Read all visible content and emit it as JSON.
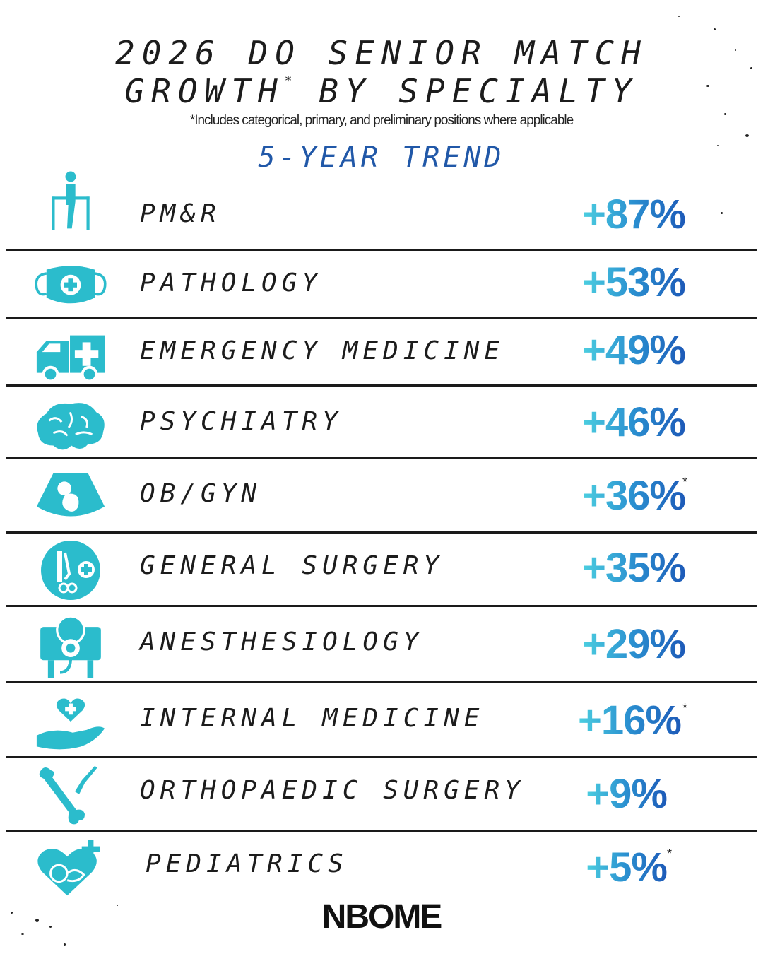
{
  "header": {
    "title_line1": "2026 DO SENIOR MATCH",
    "title_line2_a": "GROWTH",
    "title_asterisk": "*",
    "title_line2_b": "BY SPECIALTY",
    "footnote": "*Includes categorical, primary, and preliminary positions where applicable",
    "trend_label": "5-YEAR TREND"
  },
  "accent_colors": {
    "cyan": "#4ccfe0",
    "blue": "#1d5ab8",
    "trend_text": "#2158a8"
  },
  "specialties": [
    {
      "name": "PM&R",
      "growth": "+87%",
      "asterisk": "",
      "icon": "rehab-parallel-bars-icon"
    },
    {
      "name": "PATHOLOGY",
      "growth": "+53%",
      "asterisk": "",
      "icon": "face-mask-icon"
    },
    {
      "name": "EMERGENCY MEDICINE",
      "growth": "+49%",
      "asterisk": "",
      "icon": "ambulance-icon"
    },
    {
      "name": "PSYCHIATRY",
      "growth": "+46%",
      "asterisk": "",
      "icon": "brain-icon"
    },
    {
      "name": "OB/GYN",
      "growth": "+36%",
      "asterisk": "*",
      "icon": "ultrasound-baby-icon"
    },
    {
      "name": "GENERAL SURGERY",
      "growth": "+35%",
      "asterisk": "",
      "icon": "surgical-tools-icon"
    },
    {
      "name": "ANESTHESIOLOGY",
      "growth": "+29%",
      "asterisk": "",
      "icon": "anesthesia-mask-icon"
    },
    {
      "name": "INTERNAL MEDICINE",
      "growth": "+16%",
      "asterisk": "*",
      "icon": "heart-hand-icon"
    },
    {
      "name": "ORTHOPAEDIC SURGERY",
      "growth": "+9%",
      "asterisk": "",
      "icon": "bone-scalpel-icon"
    },
    {
      "name": "PEDIATRICS",
      "growth": "+5%",
      "asterisk": "*",
      "icon": "baby-heart-icon"
    }
  ],
  "logo": {
    "text": "NBOME"
  }
}
